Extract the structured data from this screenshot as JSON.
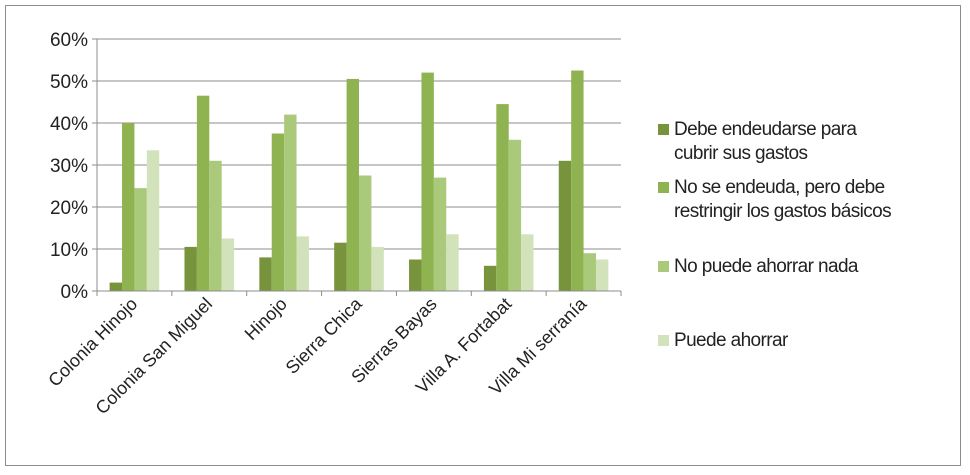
{
  "chart_data": {
    "type": "bar",
    "title": "",
    "xlabel": "",
    "ylabel": "",
    "ylim": [
      0,
      0.6
    ],
    "yticks": [
      "0%",
      "10%",
      "20%",
      "30%",
      "40%",
      "50%",
      "60%"
    ],
    "grid": true,
    "legend_position": "right",
    "categories": [
      "Colonia Hinojo",
      "Colonia San Miguel",
      "Hinojo",
      "Sierra Chica",
      "Sierras Bayas",
      "Villa A. Fortabat",
      "Villa Mi serranía"
    ],
    "series": [
      {
        "name": "Debe endeudarse para cubrir sus gastos",
        "color": "#77933c",
        "values": [
          0.02,
          0.105,
          0.08,
          0.115,
          0.075,
          0.06,
          0.31
        ]
      },
      {
        "name": "No se endeuda, pero debe restringir los gastos básicos",
        "color": "#8fb350",
        "values": [
          0.4,
          0.465,
          0.375,
          0.505,
          0.52,
          0.445,
          0.525
        ]
      },
      {
        "name": "No puede ahorrar nada",
        "color": "#aac97b",
        "values": [
          0.245,
          0.31,
          0.42,
          0.275,
          0.27,
          0.36,
          0.09
        ]
      },
      {
        "name": "Puede ahorrar",
        "color": "#d2e2bb",
        "values": [
          0.335,
          0.125,
          0.13,
          0.105,
          0.135,
          0.135,
          0.075
        ]
      }
    ]
  },
  "legend": {
    "items": [
      {
        "line1": "Debe endeudarse para",
        "line2": "cubrir sus gastos",
        "color": "#77933c"
      },
      {
        "line1": "No se endeuda, pero debe",
        "line2": "restringir los gastos básicos",
        "color": "#8fb350"
      },
      {
        "line1": "No puede ahorrar nada",
        "line2": "",
        "color": "#aac97b"
      },
      {
        "line1": "Puede ahorrar",
        "line2": "",
        "color": "#d2e2bb"
      }
    ]
  }
}
